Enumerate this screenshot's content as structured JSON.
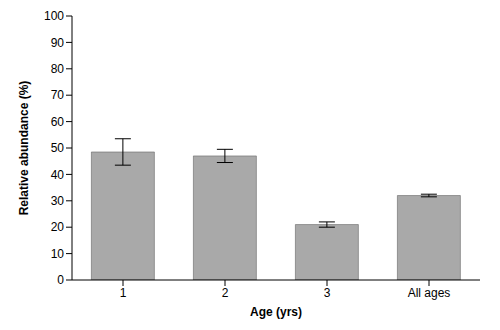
{
  "chart_data": {
    "type": "bar",
    "x_label": "Age (yrs)",
    "y_label": "Relative abundance (%)",
    "categories": [
      "1",
      "2",
      "3",
      "All ages"
    ],
    "values": [
      48.5,
      47,
      21,
      32
    ],
    "errors": [
      5,
      2.5,
      1,
      0.5
    ],
    "color": "#a9a9a9",
    "ylim": [
      0,
      100
    ],
    "yticks": [
      0,
      10,
      20,
      30,
      40,
      50,
      60,
      70,
      80,
      90,
      100
    ],
    "grid": false
  }
}
